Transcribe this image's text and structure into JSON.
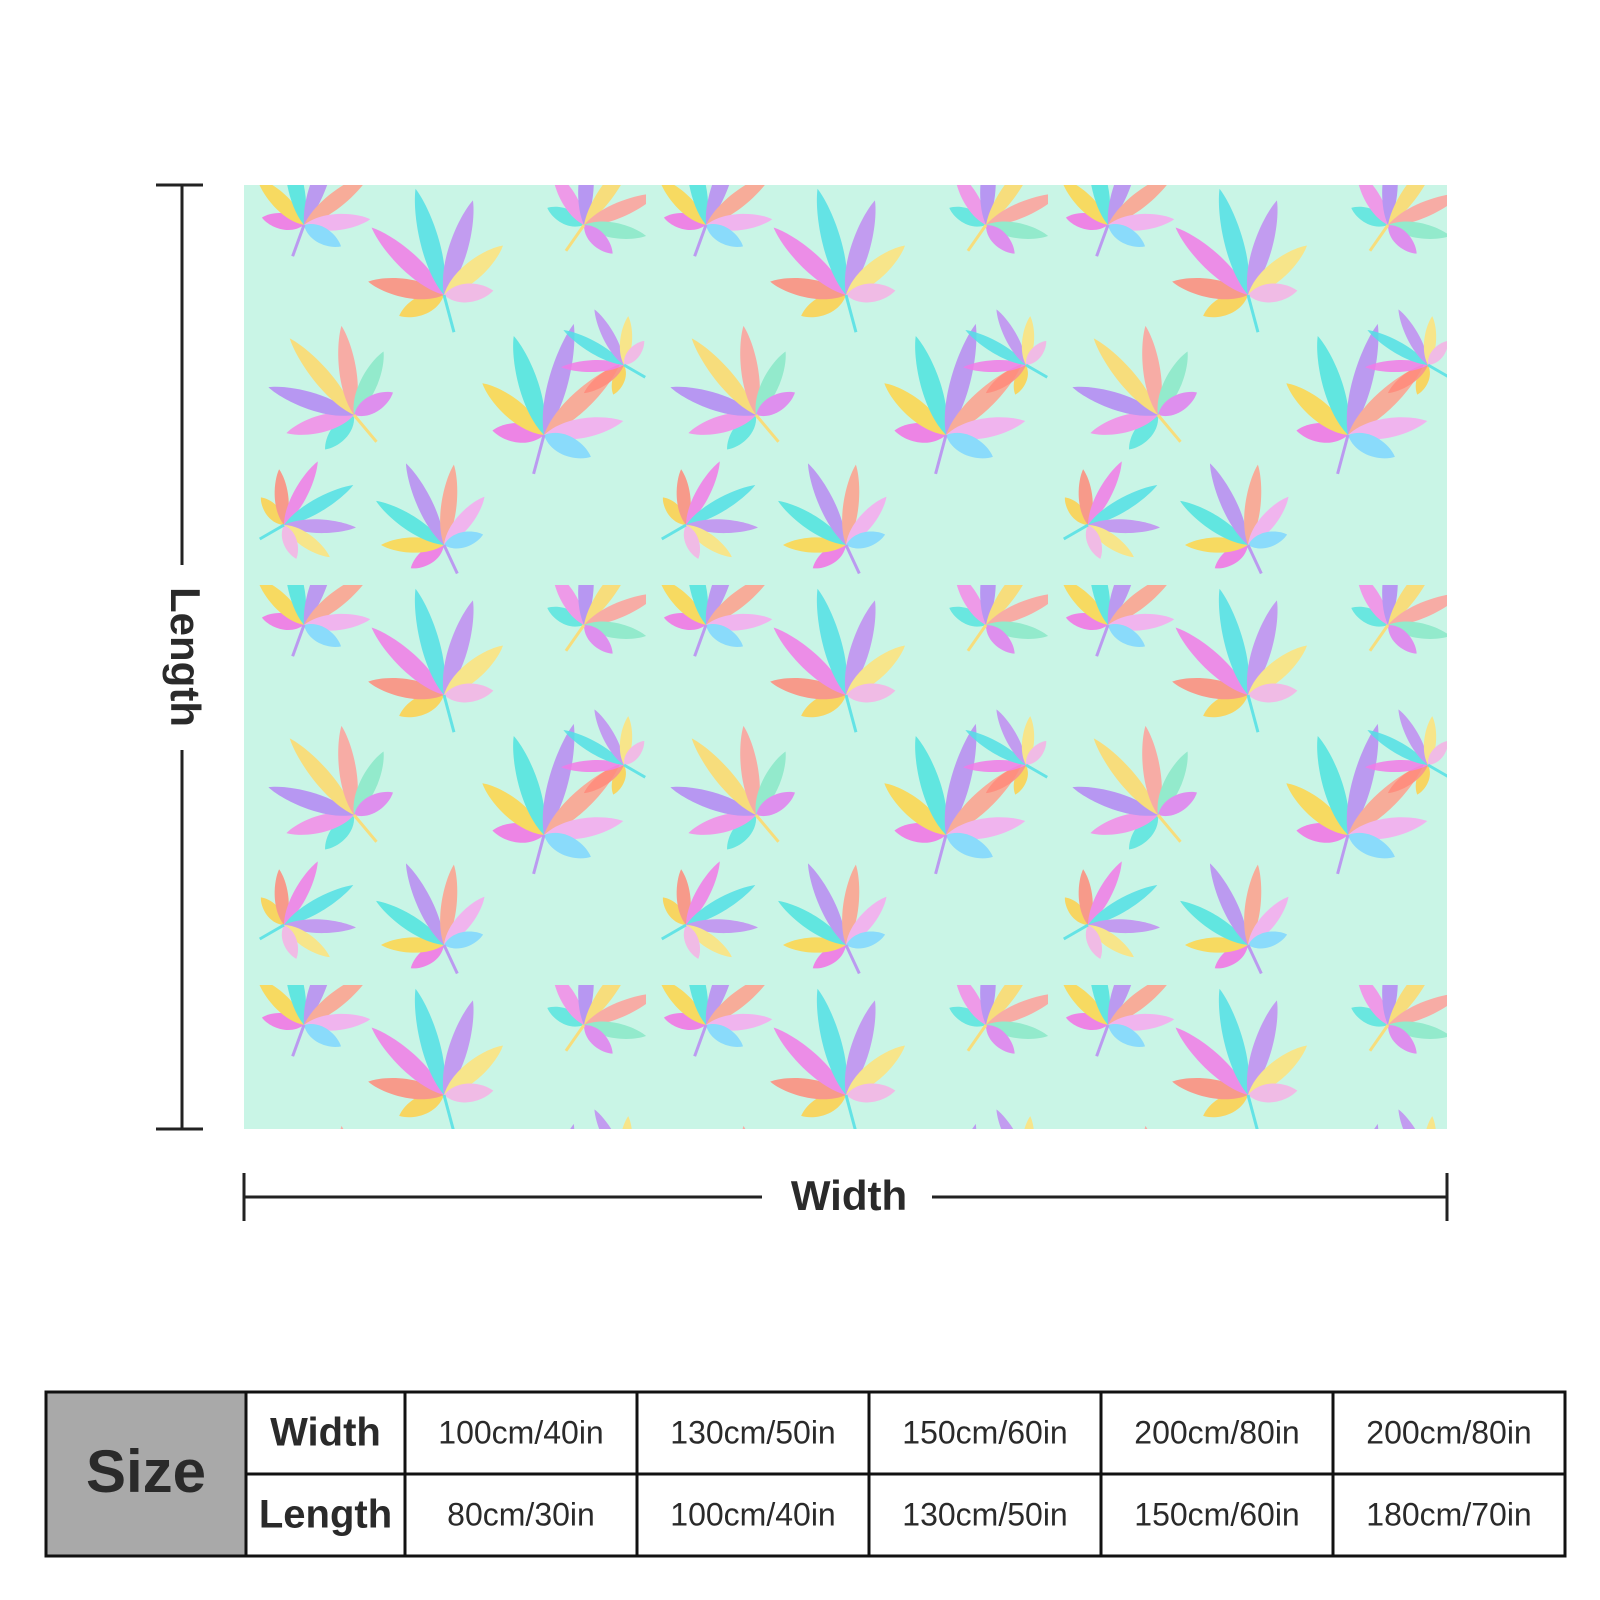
{
  "dimensions": {
    "length_label": "Length",
    "width_label": "Width"
  },
  "table": {
    "header": "Size",
    "rows": [
      {
        "label": "Width",
        "cells": [
          "100cm/40in",
          "130cm/50in",
          "150cm/60in",
          "200cm/80in",
          "200cm/80in"
        ]
      },
      {
        "label": "Length",
        "cells": [
          "80cm/30in",
          "100cm/40in",
          "130cm/50in",
          "150cm/60in",
          "180cm/70in"
        ]
      }
    ]
  }
}
